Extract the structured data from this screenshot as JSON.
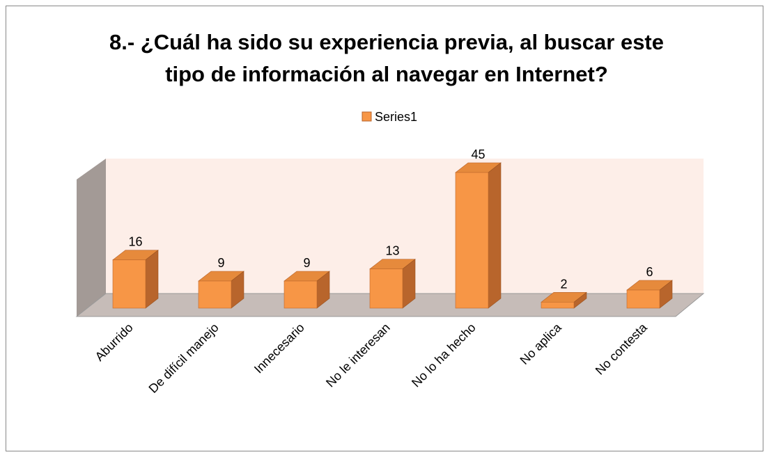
{
  "chart_data": {
    "type": "bar3d",
    "title": "8.- ¿Cuál ha sido su experiencia previa, al buscar este tipo de información al  navegar en Internet?",
    "categories": [
      "Aburrido",
      "De difícil manejo",
      "Innecesario",
      "No le interesan",
      "No lo ha hecho",
      "No aplica",
      "No contesta"
    ],
    "series": [
      {
        "name": "Series1",
        "color": "#f79646",
        "values": [
          16,
          9,
          9,
          13,
          45,
          2,
          6
        ]
      }
    ],
    "legend": "top"
  }
}
